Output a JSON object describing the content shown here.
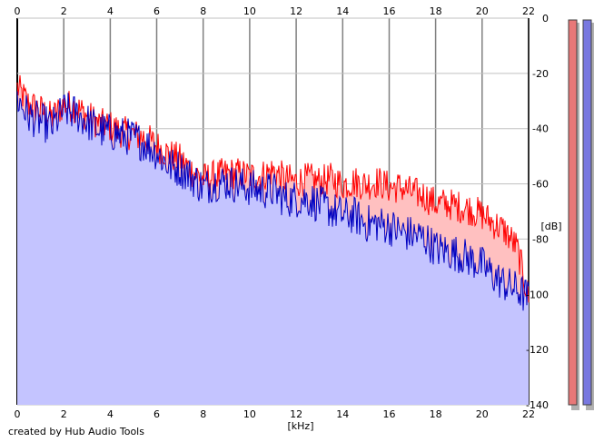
{
  "credit": "created by Hub Audio Tools",
  "colors": {
    "background": "#ffffff",
    "grid": "#c0c0c0",
    "grid_major": "#808080",
    "left_line": "#ff0000",
    "left_fill": "#ffc0c0",
    "right_line": "#0000c0",
    "right_fill": "#c4c4ff",
    "meter_left": "#e87878",
    "meter_right": "#7878e0",
    "meter_shadow": "#b0b0b0"
  },
  "chart_data": {
    "type": "area",
    "xlabel": "[kHz]",
    "ylabel": "[dB]",
    "xlim": [
      0,
      22
    ],
    "ylim": [
      -140,
      0
    ],
    "x_ticks": [
      0,
      2,
      4,
      6,
      8,
      10,
      12,
      14,
      16,
      18,
      20,
      22
    ],
    "x_tick_labels": [
      "0",
      "2",
      "4",
      "6",
      "8",
      "10",
      "12",
      "14",
      "16",
      "18",
      "20",
      "22"
    ],
    "y_ticks": [
      0,
      -20,
      -40,
      -60,
      -80,
      -100,
      -120,
      -140
    ],
    "y_tick_labels": [
      "0",
      "-20",
      "-40",
      "-60",
      "-80",
      "-100",
      "-120",
      "-140"
    ],
    "grid": true,
    "series": [
      {
        "channel": "left",
        "color": "#ff0000",
        "fill": "#ffc0c0",
        "x": [
          0,
          0.5,
          1,
          1.5,
          2,
          2.5,
          3,
          3.5,
          4,
          4.5,
          5,
          5.5,
          6,
          6.5,
          7,
          7.5,
          8,
          8.5,
          9,
          9.5,
          10,
          10.5,
          11,
          11.5,
          12,
          12.5,
          13,
          13.5,
          14,
          14.5,
          15,
          15.5,
          16,
          16.5,
          17,
          17.5,
          18,
          18.5,
          19,
          19.5,
          20,
          20.5,
          21,
          21.5,
          22
        ],
        "values": [
          -24,
          -30,
          -32,
          -35,
          -30,
          -31,
          -34,
          -37,
          -38,
          -40,
          -41,
          -42,
          -45,
          -48,
          -50,
          -54,
          -57,
          -56,
          -55,
          -55,
          -56,
          -56,
          -54,
          -57,
          -58,
          -57,
          -58,
          -57,
          -59,
          -58,
          -59,
          -58,
          -60,
          -60,
          -62,
          -63,
          -66,
          -66,
          -67,
          -68,
          -70,
          -73,
          -76,
          -82,
          -100
        ]
      },
      {
        "channel": "right",
        "color": "#0000c0",
        "fill": "#c4c4ff",
        "x": [
          0,
          0.5,
          1,
          1.5,
          2,
          2.5,
          3,
          3.5,
          4,
          4.5,
          5,
          5.5,
          6,
          6.5,
          7,
          7.5,
          8,
          8.5,
          9,
          9.5,
          10,
          10.5,
          11,
          11.5,
          12,
          12.5,
          13,
          13.5,
          14,
          14.5,
          15,
          15.5,
          16,
          16.5,
          17,
          17.5,
          18,
          18.5,
          19,
          19.5,
          20,
          20.5,
          21,
          21.5,
          22
        ],
        "values": [
          -28,
          -34,
          -36,
          -38,
          -32,
          -33,
          -36,
          -39,
          -40,
          -41,
          -42,
          -44,
          -47,
          -52,
          -53,
          -56,
          -60,
          -58,
          -58,
          -59,
          -60,
          -61,
          -61,
          -64,
          -64,
          -64,
          -66,
          -68,
          -70,
          -70,
          -73,
          -73,
          -74,
          -76,
          -77,
          -78,
          -82,
          -83,
          -84,
          -86,
          -88,
          -92,
          -95,
          -97,
          -100
        ]
      }
    ]
  },
  "meters": [
    {
      "channel": "left",
      "color": "#e87878"
    },
    {
      "channel": "right",
      "color": "#7878e0"
    }
  ]
}
